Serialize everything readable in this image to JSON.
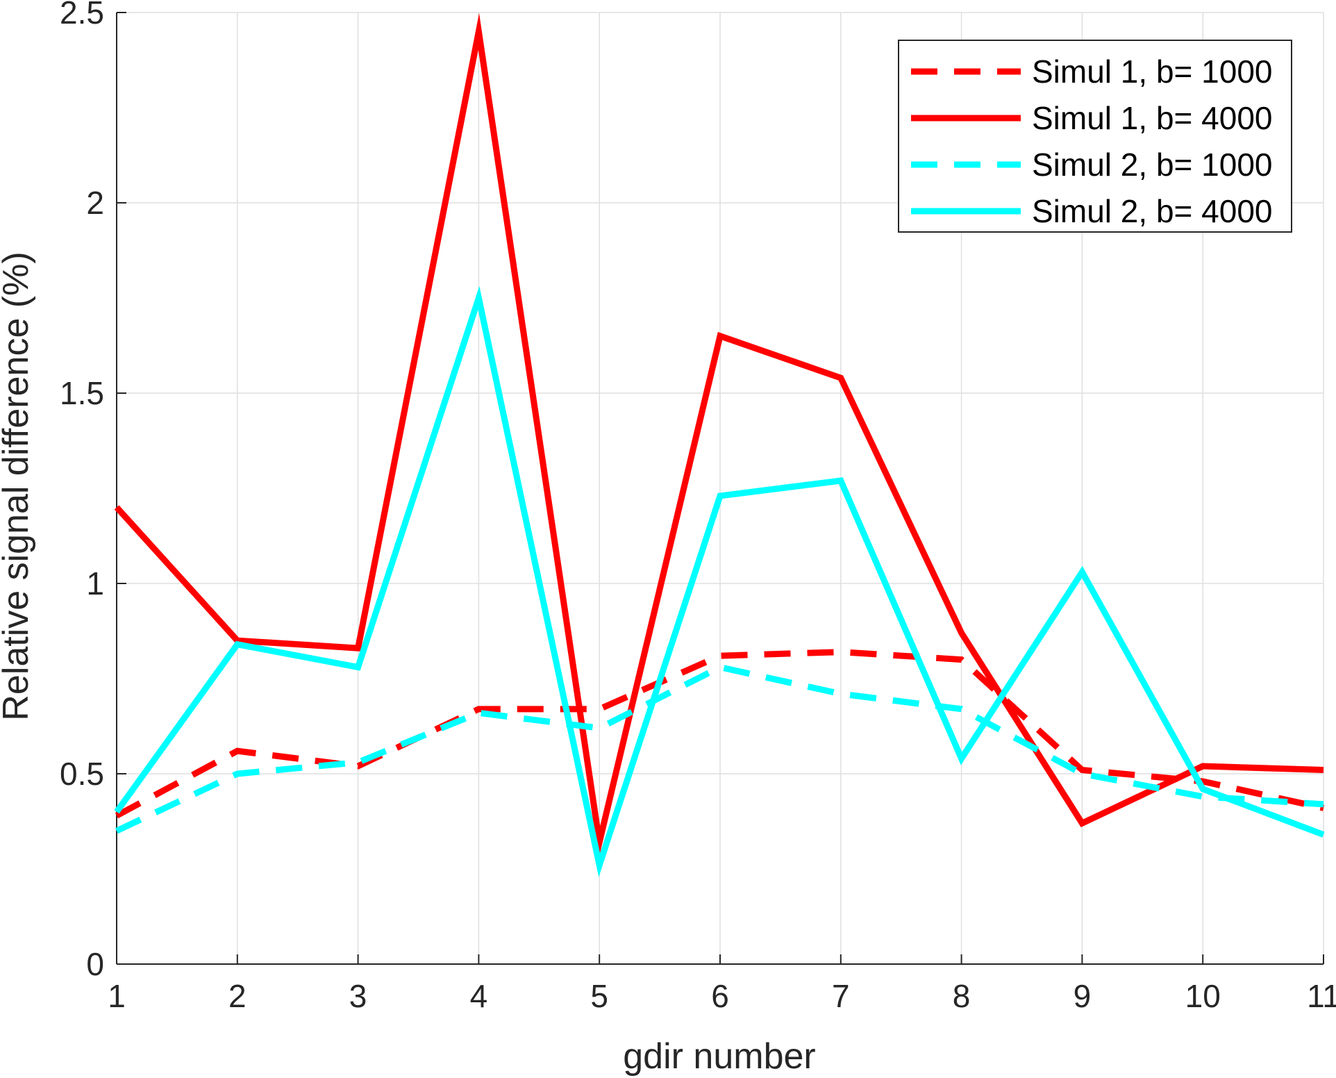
{
  "chart_data": {
    "type": "line",
    "xlabel": "gdir number",
    "ylabel": "Relative signal difference (%)",
    "x": [
      1,
      2,
      3,
      4,
      5,
      6,
      7,
      8,
      9,
      10,
      11
    ],
    "xlim": [
      1,
      11
    ],
    "ylim": [
      0,
      2.5
    ],
    "xticks": [
      "1",
      "2",
      "3",
      "4",
      "5",
      "6",
      "7",
      "8",
      "9",
      "10",
      "11"
    ],
    "yticks": [
      "0",
      "0.5",
      "1",
      "1.5",
      "2",
      "2.5"
    ],
    "grid": true,
    "legend_position": "top-right",
    "series": [
      {
        "name": "Simul 1, b= 1000",
        "color": "#ff0000",
        "style": "dashed",
        "values": [
          0.39,
          0.56,
          0.52,
          0.67,
          0.67,
          0.81,
          0.82,
          0.8,
          0.51,
          0.48,
          0.41
        ]
      },
      {
        "name": "Simul 1, b= 4000",
        "color": "#ff0000",
        "style": "solid",
        "values": [
          1.2,
          0.85,
          0.83,
          2.45,
          0.32,
          1.65,
          1.54,
          0.87,
          0.37,
          0.52,
          0.51
        ]
      },
      {
        "name": "Simul 2, b= 1000",
        "color": "#00ffff",
        "style": "dashed",
        "values": [
          0.35,
          0.5,
          0.53,
          0.66,
          0.62,
          0.78,
          0.71,
          0.67,
          0.5,
          0.44,
          0.42
        ]
      },
      {
        "name": "Simul 2, b= 4000",
        "color": "#00ffff",
        "style": "solid",
        "values": [
          0.4,
          0.84,
          0.78,
          1.75,
          0.26,
          1.23,
          1.27,
          0.54,
          1.03,
          0.46,
          0.34
        ]
      }
    ]
  }
}
